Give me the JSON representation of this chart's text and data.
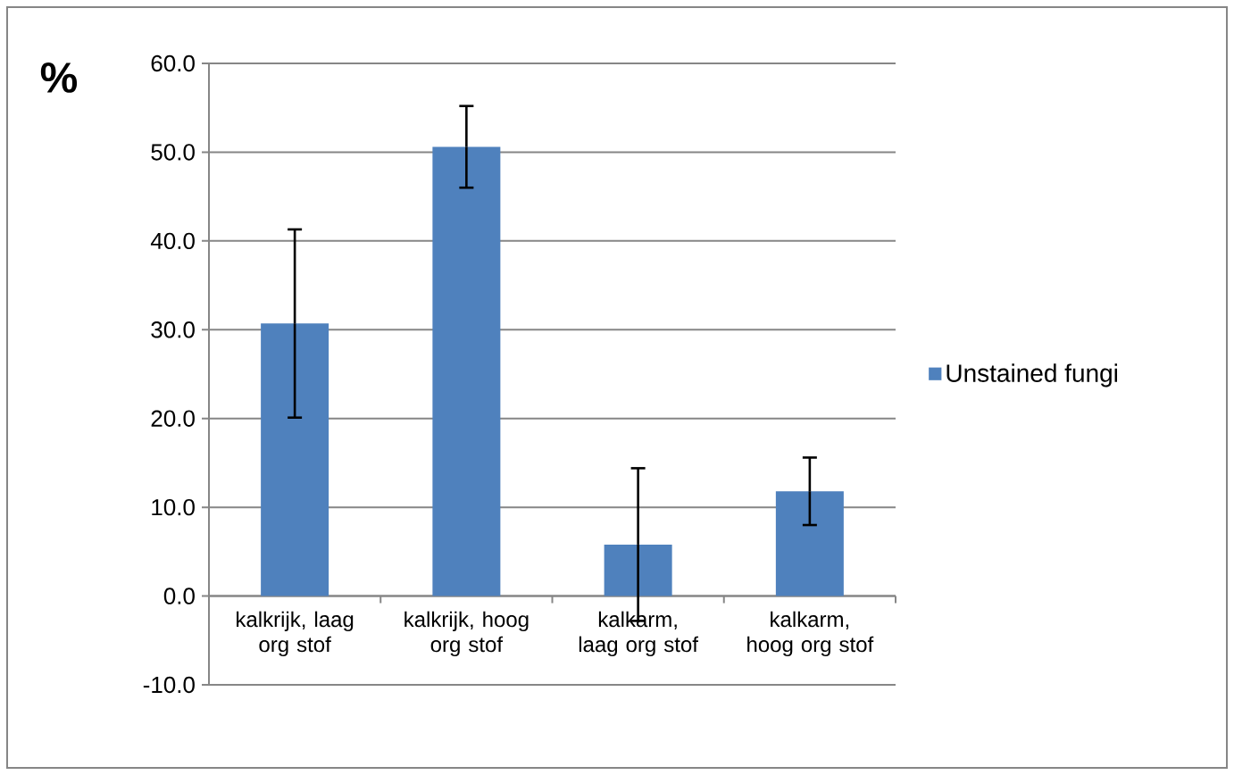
{
  "chart_data": {
    "type": "bar",
    "ylabel": "%",
    "categories": [
      "kalkrijk, laag org stof",
      "kalkrijk, hoog org stof",
      "kalkarm, laag org stof",
      "kalkarm, hoog org stof"
    ],
    "series": [
      {
        "name": "Unstained fungi",
        "color": "#4f81bd",
        "values": [
          30.7,
          50.6,
          5.8,
          11.8
        ],
        "errors": [
          10.6,
          4.6,
          8.6,
          3.8
        ]
      }
    ],
    "ylim": [
      -10,
      60
    ],
    "yticks": [
      {
        "value": -10,
        "label": "-10.0"
      },
      {
        "value": 0,
        "label": "0.0"
      },
      {
        "value": 10,
        "label": "10.0"
      },
      {
        "value": 20,
        "label": "20.0"
      },
      {
        "value": 30,
        "label": "30.0"
      },
      {
        "value": 40,
        "label": "40.0"
      },
      {
        "value": 50,
        "label": "50.0"
      },
      {
        "value": 60,
        "label": "60.0"
      }
    ],
    "grid": "y",
    "legend": "right"
  }
}
